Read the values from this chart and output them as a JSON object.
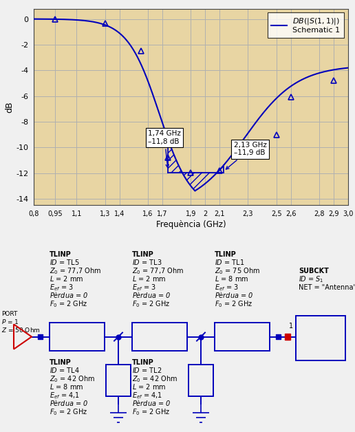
{
  "bg_color": "#e8d5a3",
  "line_color": "#0000bb",
  "grid_color": "#b0b0b0",
  "xlabel": "Frequència (GHz)",
  "ylabel": "dB",
  "xlim": [
    0.8,
    3.0
  ],
  "ylim": [
    -14,
    0.5
  ],
  "yticks": [
    0,
    -2,
    -4,
    -6,
    -8,
    -10,
    -12,
    -14
  ],
  "xtick_labels": [
    "0,8",
    "0,95",
    "1,1",
    "1,3",
    "1,4",
    "1,6",
    "1,7",
    "1,9",
    "2",
    "2,1",
    "2,3",
    "2,5",
    "2,6",
    "2,8",
    "2,9",
    "3,0"
  ],
  "xtick_values": [
    0.8,
    0.95,
    1.1,
    1.3,
    1.4,
    1.6,
    1.7,
    1.9,
    2.0,
    2.1,
    2.3,
    2.5,
    2.6,
    2.8,
    2.9,
    3.0
  ],
  "hatch_x1": 1.74,
  "hatch_x2": 2.13,
  "hatch_y": -11.95,
  "triangle_points_x": [
    0.95,
    1.3,
    1.55,
    1.74,
    1.9,
    2.1,
    2.5,
    2.6,
    2.9
  ],
  "triangle_points_y": [
    -0.05,
    -0.35,
    -2.5,
    -10.8,
    -11.95,
    -11.8,
    -9.0,
    -6.1,
    -4.8
  ],
  "blue": "#0000bb",
  "red": "#cc0000",
  "white": "#ffffff",
  "schematic_bg": "#ffffff"
}
